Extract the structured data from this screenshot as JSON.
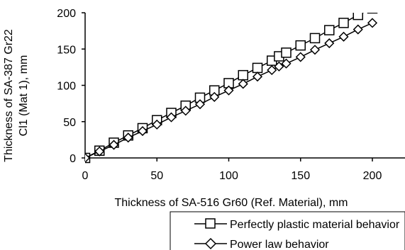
{
  "chart_data": {
    "type": "line",
    "xlabel": "Thickness of SA-516 Gr60 (Ref. Material), mm",
    "ylabel_lines": [
      "Thickness of SA-387 Gr22",
      "Cl1 (Mat 1), mm"
    ],
    "xlim": [
      0,
      225
    ],
    "ylim": [
      0,
      200
    ],
    "xticks": [
      0,
      50,
      100,
      150,
      200
    ],
    "yticks": [
      0,
      50,
      100,
      150,
      200
    ],
    "grid": false,
    "legend_position": "bottom",
    "series": [
      {
        "name": "Perfectly plastic material behavior",
        "marker": "square",
        "color": "#000000",
        "x": [
          0,
          10,
          20,
          30,
          40,
          50,
          60,
          70,
          80,
          90,
          100,
          110,
          120,
          130,
          135,
          140,
          150,
          160,
          170,
          180,
          190,
          200
        ],
        "y": [
          0,
          10,
          21,
          31,
          41,
          52,
          62,
          72,
          83,
          93,
          103,
          114,
          124,
          134,
          140,
          145,
          155,
          165,
          176,
          186,
          197,
          206
        ],
        "line_end": {
          "x": 202,
          "y": 208
        }
      },
      {
        "name": "Power law behavior",
        "marker": "diamond",
        "color": "#000000",
        "x": [
          0,
          10,
          20,
          30,
          40,
          50,
          60,
          70,
          80,
          90,
          100,
          110,
          120,
          130,
          135,
          140,
          150,
          160,
          170,
          180,
          190,
          200
        ],
        "y": [
          0,
          9,
          18,
          28,
          37,
          46,
          56,
          65,
          74,
          84,
          93,
          102,
          112,
          121,
          126,
          130,
          139,
          149,
          158,
          167,
          177,
          186
        ],
        "line_end": {
          "x": 202,
          "y": 188
        }
      }
    ]
  }
}
